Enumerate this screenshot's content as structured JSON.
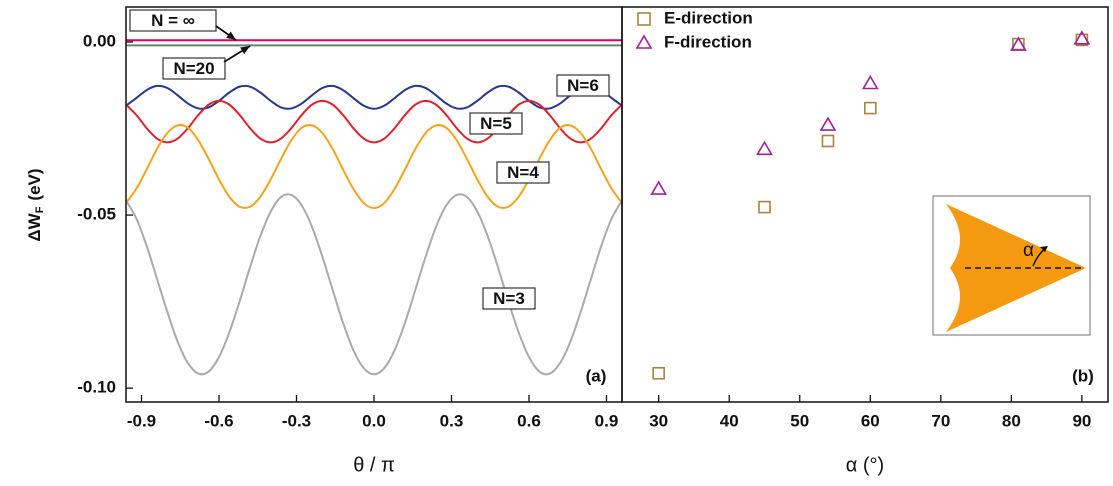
{
  "chart_data": [
    {
      "type": "line",
      "y_label": "ΔW",
      "y_label_sub": "F",
      "y_label_unit": "(eV)",
      "x_label": "θ / π",
      "annotation": "(a)",
      "xlim": [
        -0.96,
        0.96
      ],
      "ylim": [
        -0.104,
        0.0101
      ],
      "xticks": [
        -0.9,
        -0.6,
        -0.3,
        {
          "value": 0,
          "label": "0.0"
        },
        0.3,
        0.6,
        0.9
      ],
      "yticks": [
        {
          "value": 0,
          "label": "0.00"
        },
        {
          "value": -0.05,
          "label": "-0.05"
        },
        {
          "value": -0.1,
          "label": "-0.10"
        }
      ],
      "x": [
        -0.96,
        -0.92,
        -0.88,
        -0.84,
        -0.8,
        -0.76,
        -0.72,
        -0.68,
        -0.64,
        -0.6,
        -0.56,
        -0.52,
        -0.48,
        -0.44,
        -0.4,
        -0.36,
        -0.32,
        -0.28,
        -0.24,
        -0.2,
        -0.16,
        -0.12,
        -0.08,
        -0.04,
        0,
        0.04,
        0.08,
        0.12,
        0.16,
        0.2,
        0.24,
        0.28,
        0.32,
        0.36,
        0.4,
        0.44,
        0.48,
        0.52,
        0.56,
        0.6,
        0.64,
        0.68,
        0.72,
        0.76,
        0.8,
        0.84,
        0.88,
        0.92,
        0.96
      ],
      "series": [
        {
          "name": "N = ∞",
          "color": "#d6006f",
          "x": [
            -0.96,
            0.96
          ],
          "values": [
            0.0005,
            0.0005
          ]
        },
        {
          "name": "N=20",
          "color": "#5f8a70",
          "x": [
            -0.96,
            0.96
          ],
          "values": [
            -0.001,
            -0.001
          ]
        },
        {
          "name": "N=6",
          "color": "#283593",
          "values": [
            -0.0184,
            -0.0162,
            -0.0139,
            -0.0127,
            -0.0133,
            -0.0154,
            -0.0178,
            -0.0192,
            -0.0189,
            -0.017,
            -0.0146,
            -0.0129,
            -0.0129,
            -0.0146,
            -0.017,
            -0.0189,
            -0.0192,
            -0.0178,
            -0.0154,
            -0.0133,
            -0.0127,
            -0.0139,
            -0.0162,
            -0.0184,
            -0.0193,
            -0.0184,
            -0.0162,
            -0.0139,
            -0.0127,
            -0.0133,
            -0.0154,
            -0.0178,
            -0.0192,
            -0.0189,
            -0.017,
            -0.0146,
            -0.0129,
            -0.0129,
            -0.0146,
            -0.017,
            -0.0189,
            -0.0192,
            -0.0178,
            -0.0154,
            -0.0133,
            -0.0127,
            -0.0139,
            -0.0162,
            -0.0184
          ]
        },
        {
          "name": "N=5",
          "color": "#e0202a",
          "values": [
            -0.0181,
            -0.0211,
            -0.0249,
            -0.0279,
            -0.029,
            -0.0279,
            -0.0249,
            -0.0211,
            -0.0181,
            -0.017,
            -0.0181,
            -0.0211,
            -0.0249,
            -0.0279,
            -0.029,
            -0.0279,
            -0.0249,
            -0.0211,
            -0.0181,
            -0.017,
            -0.0181,
            -0.0211,
            -0.0249,
            -0.0279,
            -0.029,
            -0.0279,
            -0.0249,
            -0.0211,
            -0.0181,
            -0.017,
            -0.0181,
            -0.0211,
            -0.0249,
            -0.0279,
            -0.029,
            -0.0279,
            -0.0249,
            -0.0211,
            -0.0181,
            -0.017,
            -0.0181,
            -0.0211,
            -0.0249,
            -0.0279,
            -0.029,
            -0.0279,
            -0.0249,
            -0.0211,
            -0.0181
          ]
        },
        {
          "name": "N=4",
          "color": "#f5a31c",
          "values": [
            -0.0465,
            -0.0424,
            -0.0368,
            -0.0309,
            -0.0263,
            -0.0241,
            -0.0248,
            -0.0284,
            -0.0338,
            -0.0397,
            -0.0447,
            -0.0476,
            -0.0476,
            -0.0447,
            -0.0397,
            -0.0338,
            -0.0284,
            -0.0248,
            -0.0241,
            -0.0263,
            -0.0309,
            -0.0368,
            -0.0424,
            -0.0465,
            -0.048,
            -0.0465,
            -0.0424,
            -0.0368,
            -0.0309,
            -0.0263,
            -0.0241,
            -0.0248,
            -0.0284,
            -0.0338,
            -0.0397,
            -0.0447,
            -0.0476,
            -0.0476,
            -0.0447,
            -0.0397,
            -0.0338,
            -0.0284,
            -0.0248,
            -0.0241,
            -0.0263,
            -0.0309,
            -0.0368,
            -0.0424,
            -0.0465
          ]
        },
        {
          "name": "N=3",
          "color": "#aaaaaa",
          "values": [
            -0.0458,
            -0.051,
            -0.0589,
            -0.0684,
            -0.078,
            -0.0866,
            -0.0928,
            -0.0958,
            -0.0952,
            -0.091,
            -0.0839,
            -0.0749,
            -0.0651,
            -0.0561,
            -0.049,
            -0.0448,
            -0.0442,
            -0.0472,
            -0.0534,
            -0.062,
            -0.0716,
            -0.0811,
            -0.089,
            -0.0942,
            -0.096,
            -0.0942,
            -0.089,
            -0.0811,
            -0.0716,
            -0.062,
            -0.0534,
            -0.0472,
            -0.0442,
            -0.0448,
            -0.049,
            -0.0561,
            -0.0651,
            -0.0749,
            -0.0839,
            -0.091,
            -0.0952,
            -0.0958,
            -0.0928,
            -0.0866,
            -0.078,
            -0.0684,
            -0.0589,
            -0.051,
            -0.0458
          ]
        }
      ]
    },
    {
      "type": "scatter",
      "x_label": "α (°)",
      "annotation": "(b)",
      "inset_label": "α",
      "legend": "upper left",
      "xlim": [
        24.8,
        93.7
      ],
      "ylim": [
        -0.104,
        0.0101
      ],
      "xticks": [
        30,
        40,
        50,
        60,
        70,
        80,
        90
      ],
      "series": [
        {
          "name": "E-direction",
          "color": "#a8843e",
          "marker": "square",
          "x": [
            30,
            45,
            54,
            60,
            81,
            90
          ],
          "values": [
            -0.0957,
            -0.0477,
            -0.0286,
            -0.0191,
            -0.0006,
            0.0006
          ]
        },
        {
          "name": "F-direction",
          "color": "#a0209a",
          "marker": "triangle",
          "x": [
            30,
            45,
            54,
            60,
            81,
            90
          ],
          "values": [
            -0.0425,
            -0.031,
            -0.024,
            -0.012,
            -0.0009,
            0.0009
          ]
        }
      ]
    }
  ]
}
